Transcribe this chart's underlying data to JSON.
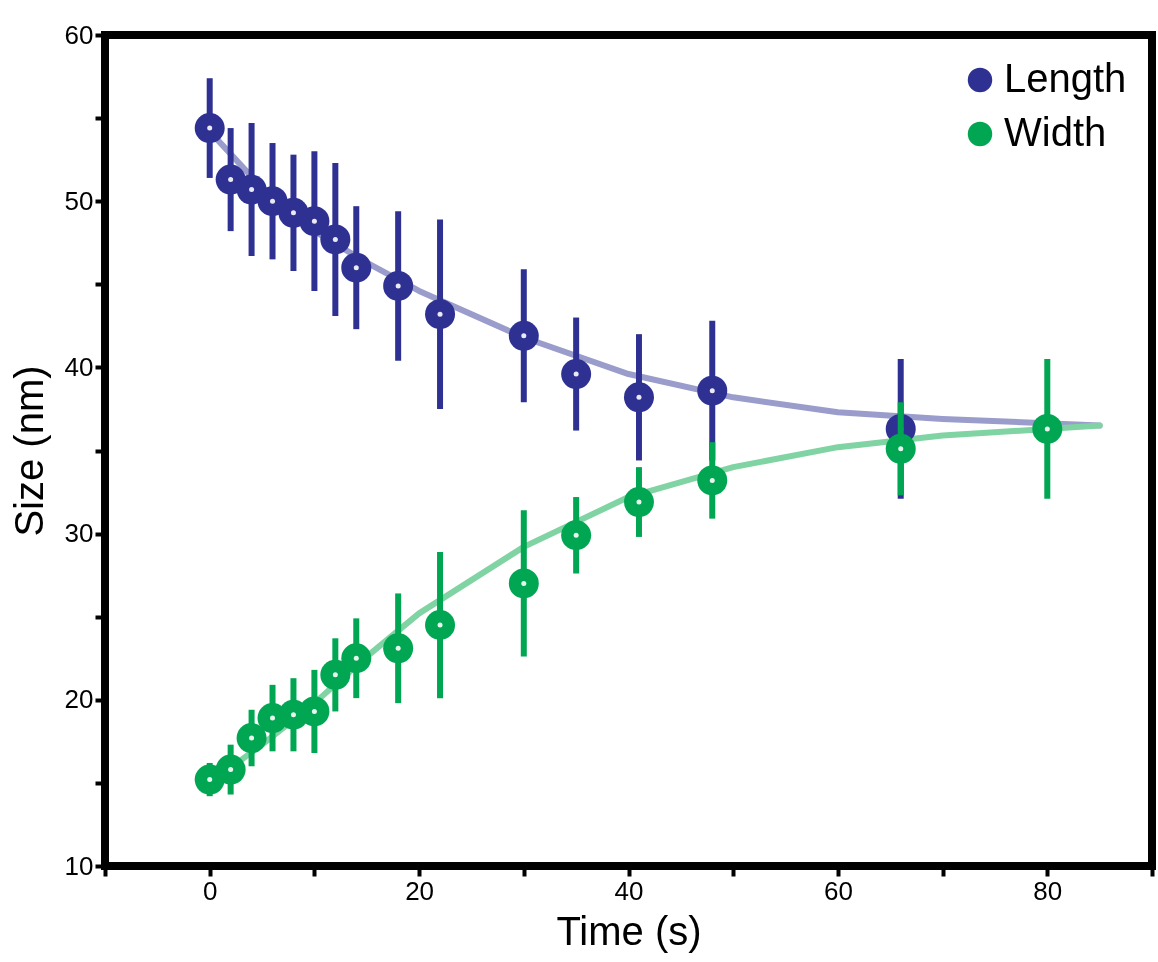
{
  "chart_data": {
    "type": "scatter",
    "xlabel": "Time (s)",
    "ylabel": "Size (nm)",
    "xlim": [
      -10,
      90
    ],
    "ylim": [
      10,
      60
    ],
    "xticks": [
      {
        "value": -10,
        "label": null
      },
      0,
      {
        "value": 10,
        "label": null
      },
      20,
      {
        "value": 30,
        "label": null
      },
      40,
      {
        "value": 50,
        "label": null
      },
      60,
      {
        "value": 70,
        "label": null
      },
      80,
      {
        "value": 90,
        "label": null
      }
    ],
    "yticks": [
      10,
      {
        "value": 15,
        "label": null
      },
      20,
      {
        "value": 25,
        "label": null
      },
      30,
      {
        "value": 35,
        "label": null
      },
      40,
      {
        "value": 45,
        "label": null
      },
      50,
      {
        "value": 55,
        "label": null
      },
      60
    ],
    "grid": false,
    "legend": "top right",
    "series": [
      {
        "type": "line",
        "color": "#9a9ccb",
        "x": [
          0,
          5,
          10,
          15,
          20,
          30,
          40,
          50,
          60,
          70,
          85
        ],
        "values": [
          54.2,
          50.8,
          48.2,
          46.3,
          44.6,
          41.8,
          39.6,
          38.2,
          37.3,
          36.9,
          36.5
        ]
      },
      {
        "type": "line",
        "color": "#80d3a2",
        "x": [
          0,
          5,
          10,
          15,
          20,
          30,
          40,
          50,
          60,
          70,
          85
        ],
        "values": [
          15.0,
          17.3,
          19.8,
          22.6,
          25.2,
          29.2,
          32.2,
          34.0,
          35.2,
          35.9,
          36.5
        ]
      },
      {
        "marker": "circle",
        "name": "Length",
        "color": "#2e3192",
        "x": [
          0,
          2,
          4,
          6,
          8,
          10,
          12,
          14,
          18,
          22,
          30,
          35,
          41,
          48,
          66
        ],
        "values": [
          54.4,
          51.3,
          50.7,
          50.0,
          49.3,
          48.8,
          47.7,
          46.0,
          44.9,
          43.2,
          41.9,
          39.6,
          38.2,
          38.6,
          36.3
        ],
        "errors": [
          3.0,
          3.1,
          4.0,
          3.5,
          3.5,
          4.2,
          4.6,
          3.7,
          4.5,
          5.7,
          4.0,
          3.4,
          3.8,
          4.2,
          4.2
        ]
      },
      {
        "marker": "circle",
        "name": "Width",
        "color": "#00a651",
        "x": [
          0,
          2,
          4,
          6,
          8,
          10,
          12,
          14,
          18,
          22,
          30,
          35,
          41,
          48,
          66,
          80
        ],
        "values": [
          15.2,
          15.8,
          17.7,
          18.9,
          19.1,
          19.3,
          21.5,
          22.5,
          23.1,
          24.5,
          27.0,
          29.9,
          31.9,
          33.2,
          35.1,
          36.3
        ],
        "errors": [
          1.0,
          1.5,
          1.7,
          2.0,
          2.2,
          2.5,
          2.2,
          2.4,
          3.3,
          4.4,
          4.4,
          2.3,
          2.1,
          2.3,
          2.8,
          4.2
        ]
      }
    ]
  }
}
